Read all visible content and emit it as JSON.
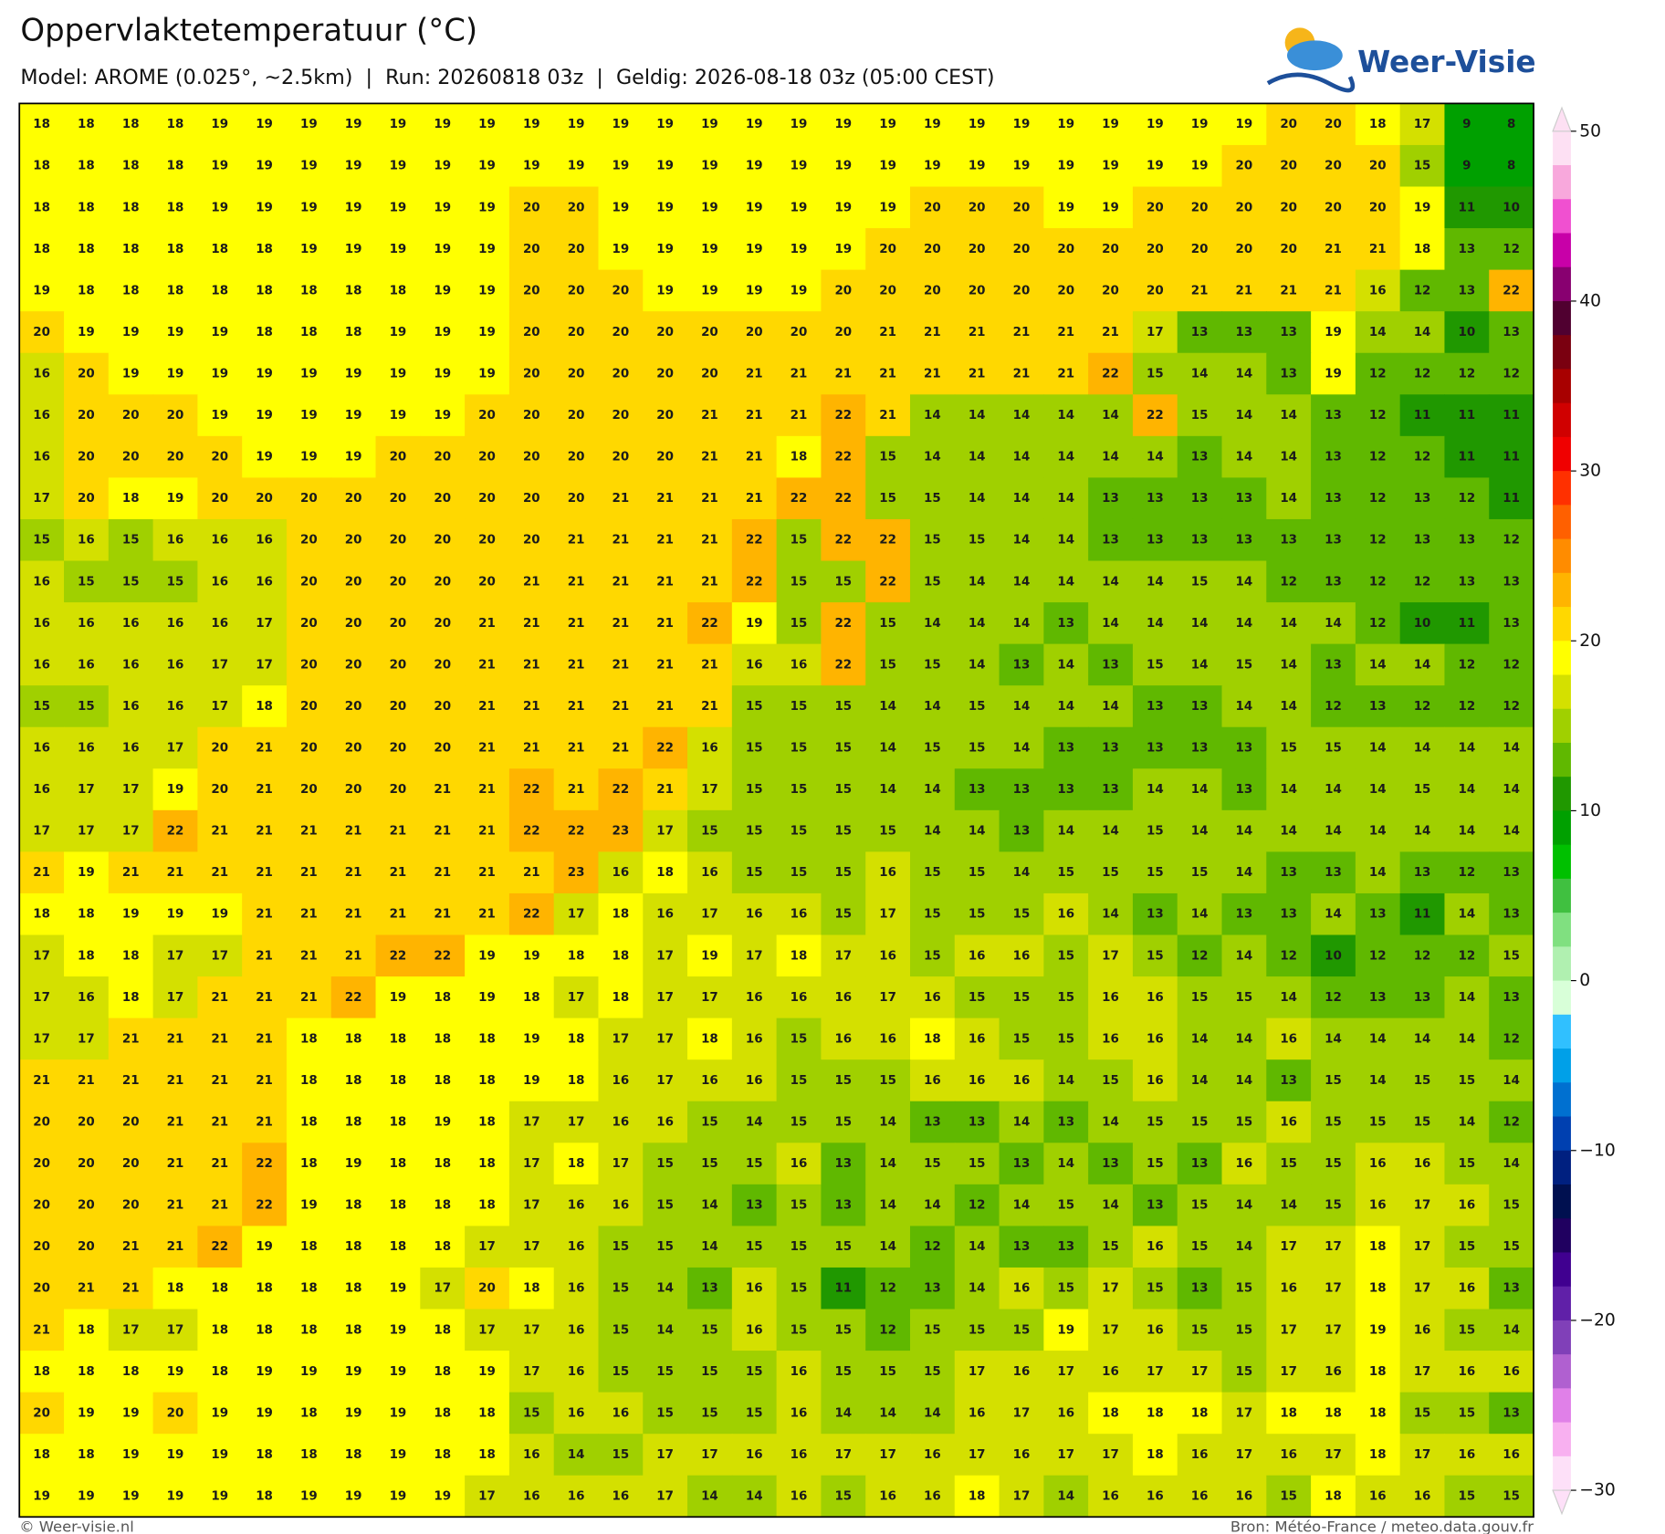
{
  "header": {
    "title": "Oppervlaktetemperatuur (°C)",
    "subtitle": "Model: AROME (0.025°, ~2.5km)  |  Run: 20260818 03z  |  Geldig: 2026-08-18 03z (05:00 CEST)",
    "logo": "Weer-Visie"
  },
  "map": {
    "values": [
      [
        18,
        18,
        18,
        18,
        19,
        19,
        19,
        19,
        19,
        19,
        19,
        19,
        19,
        19,
        19,
        19,
        19,
        19,
        19,
        19,
        19,
        19,
        19,
        19,
        19,
        19,
        19,
        19,
        20,
        20,
        18,
        17,
        9,
        8
      ],
      [
        18,
        18,
        18,
        18,
        19,
        19,
        19,
        19,
        19,
        19,
        19,
        19,
        19,
        19,
        19,
        19,
        19,
        19,
        19,
        19,
        19,
        19,
        19,
        19,
        19,
        19,
        19,
        20,
        20,
        20,
        20,
        15,
        9,
        8
      ],
      [
        18,
        18,
        18,
        18,
        19,
        19,
        19,
        19,
        19,
        19,
        19,
        20,
        20,
        19,
        19,
        19,
        19,
        19,
        19,
        19,
        20,
        20,
        20,
        19,
        19,
        20,
        20,
        20,
        20,
        20,
        20,
        19,
        11,
        10
      ],
      [
        18,
        18,
        18,
        18,
        18,
        18,
        19,
        19,
        19,
        19,
        19,
        20,
        20,
        19,
        19,
        19,
        19,
        19,
        19,
        20,
        20,
        20,
        20,
        20,
        20,
        20,
        20,
        20,
        20,
        21,
        21,
        18,
        13,
        12
      ],
      [
        19,
        18,
        18,
        18,
        18,
        18,
        18,
        18,
        18,
        19,
        19,
        20,
        20,
        20,
        19,
        19,
        19,
        19,
        20,
        20,
        20,
        20,
        20,
        20,
        20,
        20,
        21,
        21,
        21,
        21,
        16,
        12,
        13,
        22
      ],
      [
        20,
        19,
        19,
        19,
        19,
        18,
        18,
        18,
        19,
        19,
        19,
        20,
        20,
        20,
        20,
        20,
        20,
        20,
        20,
        21,
        21,
        21,
        21,
        21,
        21,
        17,
        13,
        13,
        13,
        19,
        14,
        14,
        10,
        13
      ],
      [
        16,
        20,
        19,
        19,
        19,
        19,
        19,
        19,
        19,
        19,
        19,
        20,
        20,
        20,
        20,
        20,
        21,
        21,
        21,
        21,
        21,
        21,
        21,
        21,
        22,
        15,
        14,
        14,
        13,
        19,
        12,
        12,
        12,
        12
      ],
      [
        16,
        20,
        20,
        20,
        19,
        19,
        19,
        19,
        19,
        19,
        20,
        20,
        20,
        20,
        20,
        21,
        21,
        21,
        22,
        21,
        14,
        14,
        14,
        14,
        14,
        22,
        15,
        14,
        14,
        13,
        12,
        11,
        11,
        11
      ],
      [
        16,
        20,
        20,
        20,
        20,
        19,
        19,
        19,
        20,
        20,
        20,
        20,
        20,
        20,
        20,
        21,
        21,
        18,
        22,
        15,
        14,
        14,
        14,
        14,
        14,
        14,
        13,
        14,
        14,
        13,
        12,
        12,
        11,
        11
      ],
      [
        17,
        20,
        18,
        19,
        20,
        20,
        20,
        20,
        20,
        20,
        20,
        20,
        20,
        21,
        21,
        21,
        21,
        22,
        22,
        15,
        15,
        14,
        14,
        14,
        13,
        13,
        13,
        13,
        14,
        13,
        12,
        13,
        12,
        11
      ],
      [
        15,
        16,
        15,
        16,
        16,
        16,
        20,
        20,
        20,
        20,
        20,
        20,
        21,
        21,
        21,
        21,
        22,
        15,
        22,
        22,
        15,
        15,
        14,
        14,
        13,
        13,
        13,
        13,
        13,
        13,
        12,
        13,
        13,
        12
      ],
      [
        16,
        15,
        15,
        15,
        16,
        16,
        20,
        20,
        20,
        20,
        20,
        21,
        21,
        21,
        21,
        21,
        22,
        15,
        15,
        22,
        15,
        14,
        14,
        14,
        14,
        14,
        15,
        14,
        12,
        13,
        12,
        12,
        13,
        13
      ],
      [
        16,
        16,
        16,
        16,
        16,
        17,
        20,
        20,
        20,
        20,
        21,
        21,
        21,
        21,
        21,
        22,
        19,
        15,
        22,
        15,
        14,
        14,
        14,
        13,
        14,
        14,
        14,
        14,
        14,
        14,
        12,
        10,
        11,
        13
      ],
      [
        16,
        16,
        16,
        16,
        17,
        17,
        20,
        20,
        20,
        20,
        21,
        21,
        21,
        21,
        21,
        21,
        16,
        16,
        22,
        15,
        15,
        14,
        13,
        14,
        13,
        15,
        14,
        15,
        14,
        13,
        14,
        14,
        12,
        12
      ],
      [
        15,
        15,
        16,
        16,
        17,
        18,
        20,
        20,
        20,
        20,
        21,
        21,
        21,
        21,
        21,
        21,
        15,
        15,
        15,
        14,
        14,
        15,
        14,
        14,
        14,
        13,
        13,
        14,
        14,
        12,
        13,
        12,
        12,
        12
      ],
      [
        16,
        16,
        16,
        17,
        20,
        21,
        20,
        20,
        20,
        20,
        21,
        21,
        21,
        21,
        22,
        16,
        15,
        15,
        15,
        14,
        15,
        15,
        14,
        13,
        13,
        13,
        13,
        13,
        15,
        15,
        14,
        14,
        14,
        14
      ],
      [
        16,
        17,
        17,
        19,
        20,
        21,
        20,
        20,
        20,
        21,
        21,
        22,
        21,
        22,
        21,
        17,
        15,
        15,
        15,
        14,
        14,
        13,
        13,
        13,
        13,
        14,
        14,
        13,
        14,
        14,
        14,
        15,
        14,
        14
      ],
      [
        17,
        17,
        17,
        22,
        21,
        21,
        21,
        21,
        21,
        21,
        21,
        22,
        22,
        23,
        17,
        15,
        15,
        15,
        15,
        15,
        14,
        14,
        13,
        14,
        14,
        15,
        14,
        14,
        14,
        14,
        14,
        14,
        14,
        14
      ],
      [
        21,
        19,
        21,
        21,
        21,
        21,
        21,
        21,
        21,
        21,
        21,
        21,
        23,
        16,
        18,
        16,
        15,
        15,
        15,
        16,
        15,
        15,
        14,
        15,
        15,
        15,
        15,
        14,
        13,
        13,
        14,
        13,
        12,
        13
      ],
      [
        18,
        18,
        19,
        19,
        19,
        21,
        21,
        21,
        21,
        21,
        21,
        22,
        17,
        18,
        16,
        17,
        16,
        16,
        15,
        17,
        15,
        15,
        15,
        16,
        14,
        13,
        14,
        13,
        13,
        14,
        13,
        11,
        14,
        13
      ],
      [
        17,
        18,
        18,
        17,
        17,
        21,
        21,
        21,
        22,
        22,
        19,
        19,
        18,
        18,
        17,
        19,
        17,
        18,
        17,
        16,
        15,
        16,
        16,
        15,
        17,
        15,
        12,
        14,
        12,
        10,
        12,
        12,
        12,
        15
      ],
      [
        17,
        16,
        18,
        17,
        21,
        21,
        21,
        22,
        19,
        18,
        19,
        18,
        17,
        18,
        17,
        17,
        16,
        16,
        16,
        17,
        16,
        15,
        15,
        15,
        16,
        16,
        15,
        15,
        14,
        12,
        13,
        13,
        14,
        13
      ],
      [
        17,
        17,
        21,
        21,
        21,
        21,
        18,
        18,
        18,
        18,
        18,
        19,
        18,
        17,
        17,
        18,
        16,
        15,
        16,
        16,
        18,
        16,
        15,
        15,
        16,
        16,
        14,
        14,
        16,
        14,
        14,
        14,
        14,
        12
      ],
      [
        21,
        21,
        21,
        21,
        21,
        21,
        18,
        18,
        18,
        18,
        18,
        19,
        18,
        16,
        17,
        16,
        16,
        15,
        15,
        15,
        16,
        16,
        16,
        14,
        15,
        16,
        14,
        14,
        13,
        15,
        14,
        15,
        15,
        14
      ],
      [
        20,
        20,
        20,
        21,
        21,
        21,
        18,
        18,
        18,
        19,
        18,
        17,
        17,
        16,
        16,
        15,
        14,
        15,
        15,
        14,
        13,
        13,
        14,
        13,
        14,
        15,
        15,
        15,
        16,
        15,
        15,
        15,
        14,
        12
      ],
      [
        20,
        20,
        20,
        21,
        21,
        22,
        18,
        19,
        18,
        18,
        18,
        17,
        18,
        17,
        15,
        15,
        15,
        16,
        13,
        14,
        15,
        15,
        13,
        14,
        13,
        15,
        13,
        16,
        15,
        15,
        16,
        16,
        15,
        14
      ],
      [
        20,
        20,
        20,
        21,
        21,
        22,
        19,
        18,
        18,
        18,
        18,
        17,
        16,
        16,
        15,
        14,
        13,
        15,
        13,
        14,
        14,
        12,
        14,
        15,
        14,
        13,
        15,
        14,
        14,
        15,
        16,
        17,
        16,
        15
      ],
      [
        20,
        20,
        21,
        21,
        22,
        19,
        18,
        18,
        18,
        18,
        17,
        17,
        16,
        15,
        15,
        14,
        15,
        15,
        15,
        14,
        12,
        14,
        13,
        13,
        15,
        16,
        15,
        14,
        17,
        17,
        18,
        17,
        15,
        15
      ],
      [
        20,
        21,
        21,
        18,
        18,
        18,
        18,
        18,
        19,
        17,
        20,
        18,
        16,
        15,
        14,
        13,
        16,
        15,
        11,
        12,
        13,
        14,
        16,
        15,
        17,
        15,
        13,
        15,
        16,
        17,
        18,
        17,
        16,
        13
      ],
      [
        21,
        18,
        17,
        17,
        18,
        18,
        18,
        18,
        19,
        18,
        17,
        17,
        16,
        15,
        14,
        15,
        16,
        15,
        15,
        12,
        15,
        15,
        15,
        19,
        17,
        16,
        15,
        15,
        17,
        17,
        19,
        16,
        15,
        14
      ],
      [
        18,
        18,
        18,
        19,
        18,
        19,
        19,
        19,
        19,
        18,
        19,
        17,
        16,
        15,
        15,
        15,
        15,
        16,
        15,
        15,
        15,
        17,
        16,
        17,
        16,
        17,
        17,
        15,
        17,
        16,
        18,
        17,
        16,
        16
      ],
      [
        20,
        19,
        19,
        20,
        19,
        19,
        18,
        19,
        19,
        18,
        18,
        15,
        16,
        16,
        15,
        15,
        15,
        16,
        14,
        14,
        14,
        16,
        17,
        16,
        18,
        18,
        18,
        17,
        18,
        18,
        18,
        15,
        15,
        13
      ],
      [
        18,
        18,
        19,
        19,
        19,
        18,
        18,
        18,
        19,
        18,
        18,
        16,
        14,
        15,
        17,
        17,
        16,
        16,
        17,
        17,
        16,
        17,
        16,
        17,
        17,
        18,
        16,
        17,
        16,
        17,
        18,
        17,
        16,
        16
      ],
      [
        19,
        19,
        19,
        19,
        19,
        18,
        19,
        19,
        19,
        19,
        17,
        16,
        16,
        16,
        17,
        14,
        14,
        16,
        15,
        16,
        16,
        18,
        17,
        14,
        16,
        16,
        16,
        16,
        15,
        18,
        16,
        16,
        15,
        15
      ]
    ]
  },
  "colorbar": {
    "lim": [
      -30,
      50
    ],
    "ticks": [
      50,
      40,
      30,
      20,
      10,
      0,
      {
        "value": -10,
        "label": "−10"
      },
      {
        "value": -20,
        "label": "−20"
      },
      {
        "value": -30,
        "label": "−30"
      }
    ],
    "colors": [
      "#fde0f3",
      "#f8a8dc",
      "#f050d0",
      "#c800a8",
      "#880070",
      "#500030",
      "#7a0010",
      "#a80000",
      "#d00000",
      "#f00000",
      "#ff3000",
      "#ff6000",
      "#ff8c00",
      "#ffb400",
      "#ffd800",
      "#ffff00",
      "#d4e000",
      "#a0d000",
      "#60b800",
      "#209800",
      "#00a000",
      "#00c000",
      "#40c040",
      "#80e080",
      "#b0f0b0",
      "#d8ffd8",
      "#30c0ff",
      "#00a0e8",
      "#0070d0",
      "#0040b0",
      "#002080",
      "#001050",
      "#200060",
      "#400090",
      "#6020a8",
      "#8040b8",
      "#b060d0",
      "#e080e8",
      "#f8b0f0",
      "#fde0f8"
    ]
  },
  "footer": {
    "left": "© Weer-visie.nl",
    "right": "Bron: Météo-France / meteo.data.gouv.fr"
  }
}
